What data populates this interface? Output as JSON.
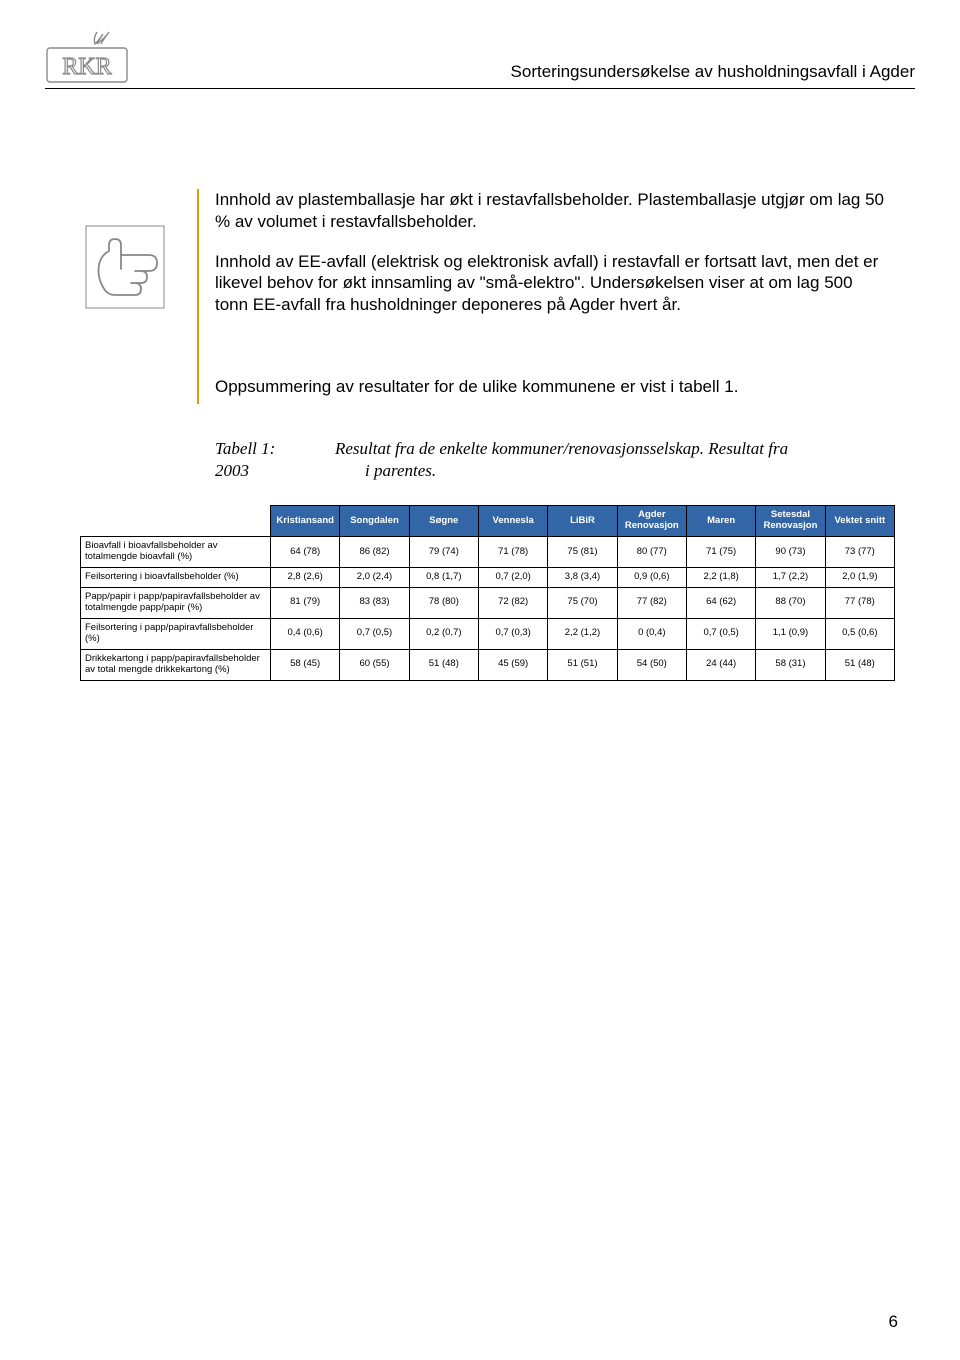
{
  "header": {
    "title": "Sorteringsundersøkelse av husholdningsavfall i Agder",
    "logo_text": "RKR"
  },
  "paragraphs": {
    "p1": "Innhold av plastemballasje har økt i restavfallsbeholder. Plastemballasje utgjør om lag 50 % av volumet i restavfallsbeholder.",
    "p2": "Innhold av EE-avfall (elektrisk og elektronisk avfall) i restavfall er fortsatt lavt, men det er likevel behov for økt innsamling av \"små-elektro\". Undersøkelsen viser at om lag 500 tonn EE-avfall fra husholdninger deponeres på Agder hvert år.",
    "summary": "Oppsummering av resultater for de ulike kommunene er vist i tabell 1."
  },
  "table_caption": {
    "label_line1": "Tabell 1:",
    "label_line2": "2003",
    "body_line1": "Resultat fra de enkelte kommuner/renovasjonsselskap. Resultat fra",
    "body_line2": "i parentes."
  },
  "table": {
    "header_bg": "#3366a6",
    "header_fg": "#ffffff",
    "columns": [
      "",
      "Kristiansand",
      "Songdalen",
      "Søgne",
      "Vennesla",
      "LiBiR",
      "Agder Renovasjon",
      "Maren",
      "Setesdal Renovasjon",
      "Vektet snitt"
    ],
    "rows": [
      {
        "label": "Bioavfall i bioavfallsbeholder av totalmengde bioavfall (%)",
        "cells": [
          "64 (78)",
          "86 (82)",
          "79 (74)",
          "71 (78)",
          "75 (81)",
          "80 (77)",
          "71 (75)",
          "90 (73)",
          "73 (77)"
        ]
      },
      {
        "label": "Feilsortering i bioavfallsbeholder (%)",
        "cells": [
          "2,8 (2,6)",
          "2,0 (2,4)",
          "0,8 (1,7)",
          "0,7 (2,0)",
          "3,8 (3,4)",
          "0,9 (0,6)",
          "2,2 (1,8)",
          "1,7 (2,2)",
          "2,0 (1,9)"
        ]
      },
      {
        "label": "Papp/papir i papp/papiravfallsbeholder av totalmengde papp/papir (%)",
        "cells": [
          "81 (79)",
          "83 (83)",
          "78 (80)",
          "72 (82)",
          "75 (70)",
          "77 (82)",
          "64 (62)",
          "88 (70)",
          "77 (78)"
        ]
      },
      {
        "label": "Feilsortering i papp/papiravfallsbeholder (%)",
        "cells": [
          "0,4 (0,6)",
          "0,7 (0,5)",
          "0,2 (0,7)",
          "0,7 (0,3)",
          "2,2 (1,2)",
          "0 (0,4)",
          "0,7 (0,5)",
          "1,1 (0,9)",
          "0,5 (0,6)"
        ]
      },
      {
        "label": "Drikkekartong i papp/papiravfallsbeholder av total mengde drikkekartong (%)",
        "cells": [
          "58 (45)",
          "60 (55)",
          "51 (48)",
          "45 (59)",
          "51 (51)",
          "54 (50)",
          "24 (44)",
          "58 (31)",
          "51 (48)"
        ]
      }
    ]
  },
  "page_number": "6"
}
